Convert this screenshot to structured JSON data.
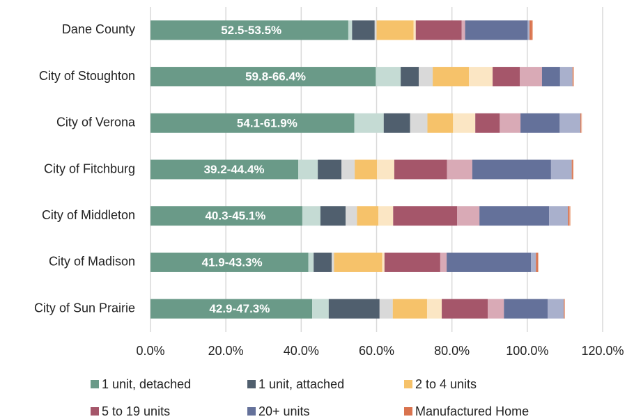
{
  "chart_data": {
    "type": "stacked-range-bar",
    "categories": [
      "Dane County",
      "City of Stoughton",
      "City of Verona",
      "City of Fitchburg",
      "City of Middleton",
      "City of Madison",
      "City of Sun Prairie"
    ],
    "series": [
      {
        "name": "1 unit, detached",
        "color": "#6a9a88",
        "range_color": "#c5dbd4",
        "values": [
          52.5,
          59.8,
          54.1,
          39.2,
          40.3,
          41.9,
          42.9
        ],
        "range": [
          1.0,
          6.6,
          7.8,
          5.2,
          4.8,
          1.4,
          4.4
        ],
        "value_labels": [
          "52.5-53.5%",
          "59.8-66.4%",
          "54.1-61.9%",
          "39.2-44.4%",
          "40.3-45.1%",
          "41.9-43.3%",
          "42.9-47.3%"
        ]
      },
      {
        "name": "1 unit, attached",
        "color": "#505f6e",
        "range_color": "#d9d9d9",
        "values": [
          6.0,
          4.8,
          7.0,
          6.3,
          6.7,
          4.8,
          13.5
        ],
        "range": [
          0.5,
          3.7,
          4.6,
          3.5,
          3.0,
          0.6,
          3.5
        ]
      },
      {
        "name": "2 to 4 units",
        "color": "#f6c26a",
        "range_color": "#fbe6c4",
        "values": [
          9.8,
          9.6,
          6.8,
          5.9,
          5.7,
          12.8,
          9.1
        ],
        "range": [
          0.6,
          6.3,
          5.9,
          4.6,
          3.9,
          0.6,
          3.9
        ]
      },
      {
        "name": "5 to 19 units",
        "color": "#a5566a",
        "range_color": "#d9aab6",
        "values": [
          12.2,
          7.2,
          6.5,
          14.0,
          17.0,
          14.8,
          12.2
        ],
        "range": [
          0.9,
          5.9,
          5.5,
          6.7,
          5.9,
          1.7,
          4.3
        ]
      },
      {
        "name": "20+ units",
        "color": "#64719a",
        "range_color": "#a9b0cc",
        "values": [
          16.6,
          4.8,
          10.4,
          20.9,
          18.5,
          22.4,
          11.6
        ],
        "range": [
          0.5,
          3.3,
          5.5,
          5.5,
          5.0,
          1.3,
          4.3
        ]
      },
      {
        "name": "Manufactured Home",
        "color": "#d9734e",
        "range_color": "#efb99f",
        "values": [
          0.7,
          0.2,
          0.2,
          0.3,
          0.4,
          0.5,
          0.2
        ],
        "range": [
          0.2,
          0.2,
          0.2,
          0.2,
          0.3,
          0.2,
          0.1
        ]
      }
    ],
    "xlim": [
      0,
      120
    ],
    "xticks": [
      {
        "value": 0,
        "label": "0.0%"
      },
      {
        "value": 20,
        "label": "20.0%"
      },
      {
        "value": 40,
        "label": "40.0%"
      },
      {
        "value": 60,
        "label": "60.0%"
      },
      {
        "value": 80,
        "label": "80.0%"
      },
      {
        "value": 100,
        "label": "100.0%"
      },
      {
        "value": 120,
        "label": "120.0%"
      }
    ],
    "grid": true
  }
}
